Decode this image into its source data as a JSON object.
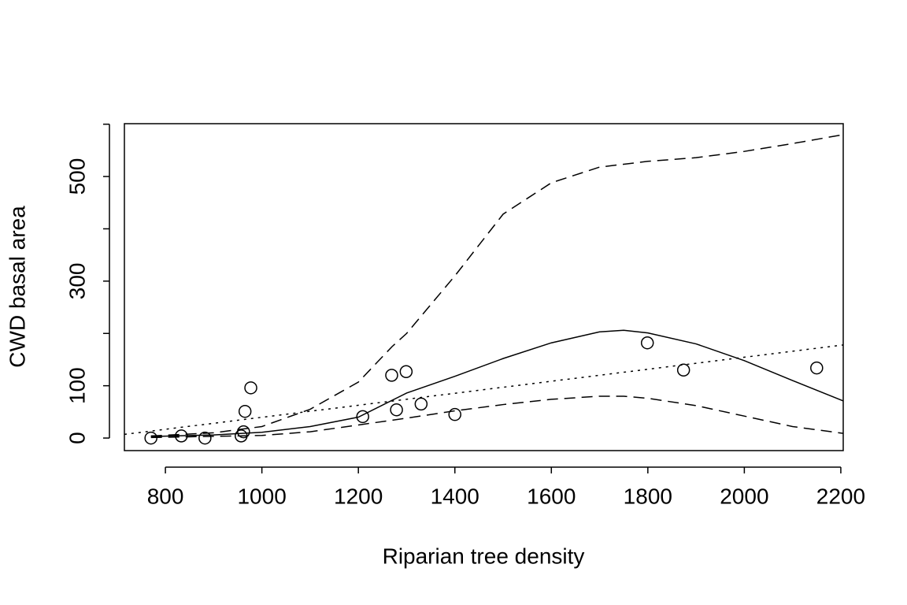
{
  "chart_data": {
    "type": "scatter",
    "xlabel": "Riparian tree density",
    "ylabel": "CWD basal area",
    "xlim": [
      715,
      2205
    ],
    "ylim": [
      -24,
      601
    ],
    "xticks": [
      800,
      1000,
      1200,
      1400,
      1600,
      1800,
      2000,
      2200
    ],
    "yticks": [
      0,
      100,
      200,
      300,
      400,
      500,
      600
    ],
    "ytick_labels": [
      0,
      100,
      300,
      500
    ],
    "series": [
      {
        "kind": "points",
        "color": "#000000",
        "x": [
          770,
          833,
          882,
          957,
          962,
          965,
          977,
          1209,
          1269,
          1279,
          1299,
          1330,
          1400,
          1799,
          1874,
          2150
        ],
        "values": [
          0,
          4,
          0,
          4,
          12,
          51,
          96,
          41,
          120,
          54,
          127,
          65,
          45,
          182,
          130,
          134
        ]
      },
      {
        "kind": "line",
        "dash": "solid",
        "color": "#000000",
        "x": [
          770,
          900,
          1000,
          1100,
          1200,
          1300,
          1400,
          1500,
          1600,
          1700,
          1750,
          1800,
          1900,
          2000,
          2100,
          2205
        ],
        "values": [
          3,
          6,
          11,
          22,
          40,
          86,
          118,
          152,
          182,
          203,
          206,
          201,
          180,
          148,
          110,
          71
        ]
      },
      {
        "kind": "line",
        "dash": "dashed",
        "color": "#000000",
        "x": [
          770,
          900,
          1000,
          1100,
          1200,
          1270,
          1300,
          1400,
          1500,
          1600,
          1700,
          1800,
          1900,
          2000,
          2100,
          2205
        ],
        "values": [
          4,
          10,
          22,
          55,
          107,
          175,
          200,
          310,
          428,
          488,
          518,
          529,
          536,
          548,
          563,
          580
        ]
      },
      {
        "kind": "line",
        "dash": "dashed",
        "color": "#000000",
        "x": [
          770,
          1000,
          1100,
          1200,
          1300,
          1400,
          1500,
          1600,
          1700,
          1750,
          1800,
          1900,
          2000,
          2100,
          2205
        ],
        "values": [
          1,
          5,
          12,
          25,
          38,
          52,
          64,
          74,
          80,
          80,
          76,
          62,
          42,
          22,
          9
        ]
      },
      {
        "kind": "line",
        "dash": "dotted",
        "color": "#000000",
        "x": [
          715,
          2205
        ],
        "values": [
          7,
          178
        ]
      }
    ]
  }
}
